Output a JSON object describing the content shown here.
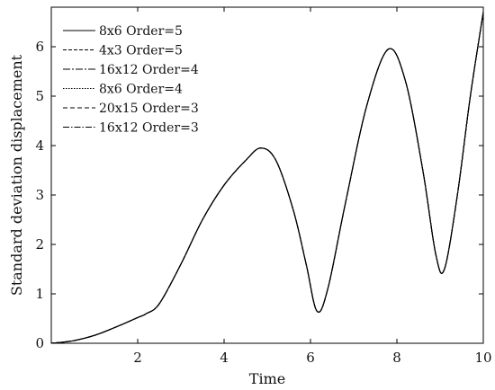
{
  "chart_data": {
    "type": "line",
    "title": "",
    "xlabel": "Time",
    "ylabel": "Standard deviation displacement",
    "xlim": [
      0,
      10
    ],
    "ylim": [
      0,
      6.8
    ],
    "xticks": [
      2,
      4,
      6,
      8,
      10
    ],
    "yticks": [
      0,
      1,
      2,
      3,
      4,
      5,
      6
    ],
    "grid": false,
    "legend_position": "top-left",
    "x": [
      0,
      0.5,
      1,
      1.5,
      2,
      2.2,
      2.5,
      3,
      3.5,
      4,
      4.5,
      4.85,
      5.2,
      5.6,
      5.9,
      6.15,
      6.4,
      6.8,
      7.3,
      7.8,
      8.2,
      8.6,
      8.9,
      9.1,
      9.4,
      9.7,
      10
    ],
    "curve": [
      0,
      0.05,
      0.16,
      0.33,
      0.52,
      0.6,
      0.8,
      1.6,
      2.5,
      3.2,
      3.7,
      3.95,
      3.7,
      2.7,
      1.6,
      0.65,
      1.1,
      2.8,
      4.8,
      5.95,
      5.3,
      3.5,
      1.8,
      1.5,
      3.0,
      5.0,
      6.7
    ],
    "series": [
      {
        "name": "8x6 Order=5",
        "dash": ""
      },
      {
        "name": "4x3 Order=5",
        "dash": "4,2"
      },
      {
        "name": "16x12 Order=4",
        "dash": "8,2,2,2"
      },
      {
        "name": "8x6 Order=4",
        "dash": "1.5,1.5"
      },
      {
        "name": "20x15 Order=3",
        "dash": "5,3"
      },
      {
        "name": "16x12 Order=3",
        "dash": "7,2,1.5,2"
      }
    ]
  }
}
